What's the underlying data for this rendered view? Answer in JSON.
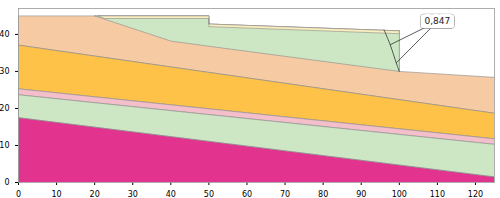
{
  "chart_data": {
    "type": "cross-section",
    "xlim": [
      0,
      125
    ],
    "ylim": [
      0,
      47
    ],
    "xticks": [
      0,
      10,
      20,
      30,
      40,
      50,
      60,
      70,
      80,
      90,
      100,
      110,
      120
    ],
    "yticks": [
      0,
      10,
      20,
      30,
      40
    ],
    "grid": false,
    "regions": [
      {
        "color": "#f6cba3",
        "points": [
          [
            0,
            45
          ],
          [
            50,
            45
          ],
          [
            50,
            42.8
          ],
          [
            98.7,
            41
          ],
          [
            100,
            41
          ],
          [
            100,
            30
          ],
          [
            125,
            28.4
          ],
          [
            125,
            18.7
          ],
          [
            0,
            37.1
          ]
        ]
      },
      {
        "color": "#cde6c4",
        "points": [
          [
            20,
            45
          ],
          [
            50,
            45
          ],
          [
            50,
            42.8
          ],
          [
            98.7,
            41
          ],
          [
            100,
            41
          ],
          [
            100,
            30
          ],
          [
            50,
            36.8
          ],
          [
            40,
            38.2
          ]
        ]
      },
      {
        "color": "#fbefbf",
        "points": [
          [
            21,
            45
          ],
          [
            50,
            45
          ],
          [
            50,
            42.8
          ],
          [
            98.7,
            41
          ],
          [
            100,
            41
          ],
          [
            100,
            40.2
          ],
          [
            50,
            42.1
          ],
          [
            50,
            44.3
          ],
          [
            22.5,
            44.3
          ]
        ]
      },
      {
        "color": "#fdc247",
        "points": [
          [
            0,
            37.1
          ],
          [
            125,
            18.7
          ],
          [
            125,
            11.8
          ],
          [
            0,
            25.3
          ]
        ]
      },
      {
        "color": "#f3bfcb",
        "points": [
          [
            0,
            25.3
          ],
          [
            125,
            11.8
          ],
          [
            125,
            10.3
          ],
          [
            0,
            23.7
          ]
        ]
      },
      {
        "color": "#cde6c4",
        "points": [
          [
            0,
            23.7
          ],
          [
            125,
            10.3
          ],
          [
            125,
            1.5
          ],
          [
            0,
            17.5
          ]
        ]
      },
      {
        "color": "#e2338f",
        "points": [
          [
            0,
            17.5
          ],
          [
            125,
            1.5
          ],
          [
            125,
            0
          ],
          [
            0,
            0
          ]
        ]
      }
    ],
    "slip_surface": {
      "color": "#555555",
      "points": [
        [
          96,
          41.2
        ],
        [
          97.5,
          37.5
        ],
        [
          98.5,
          34.5
        ],
        [
          99.3,
          32
        ],
        [
          100,
          30
        ]
      ]
    },
    "annotation": {
      "text": "0,847",
      "x": 110,
      "y": 43.5,
      "targets": [
        [
          97.6,
          37.2
        ],
        [
          99.2,
          32.3
        ]
      ]
    }
  }
}
